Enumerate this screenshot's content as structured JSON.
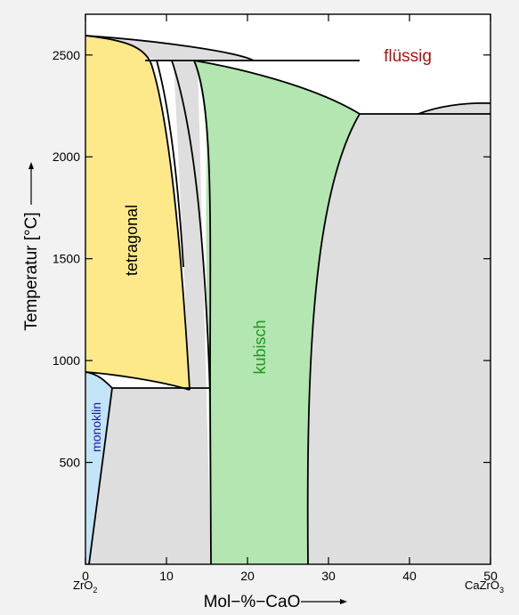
{
  "chart_data": {
    "type": "phase-diagram",
    "xlabel": "Mol−%−CaO",
    "ylabel": "Temperatur [°C]",
    "x_ticks": [
      "0",
      "10",
      "20",
      "30",
      "40",
      "50"
    ],
    "y_ticks": [
      "500",
      "1000",
      "1500",
      "2000",
      "2500"
    ],
    "xlim": [
      0,
      50
    ],
    "ylim": [
      0,
      2700
    ],
    "left_component": {
      "base": "ZrO",
      "sub": "2"
    },
    "right_component": {
      "base": "CaZrO",
      "sub": "3"
    },
    "regions": [
      {
        "key": "liquid",
        "label": "flüssig",
        "color": "#b01010"
      },
      {
        "key": "tetragonal",
        "label": "tetragonal",
        "color": "#000000",
        "fill": "#fde98a"
      },
      {
        "key": "cubic",
        "label": "kubisch",
        "color": "#1a9a1a",
        "fill": "#b3e6b0"
      },
      {
        "key": "monoclinic",
        "label": "monoklin",
        "color": "#1a1aa0",
        "fill": "#c2e4f7"
      }
    ],
    "two_phase_fill": "#dedede"
  }
}
